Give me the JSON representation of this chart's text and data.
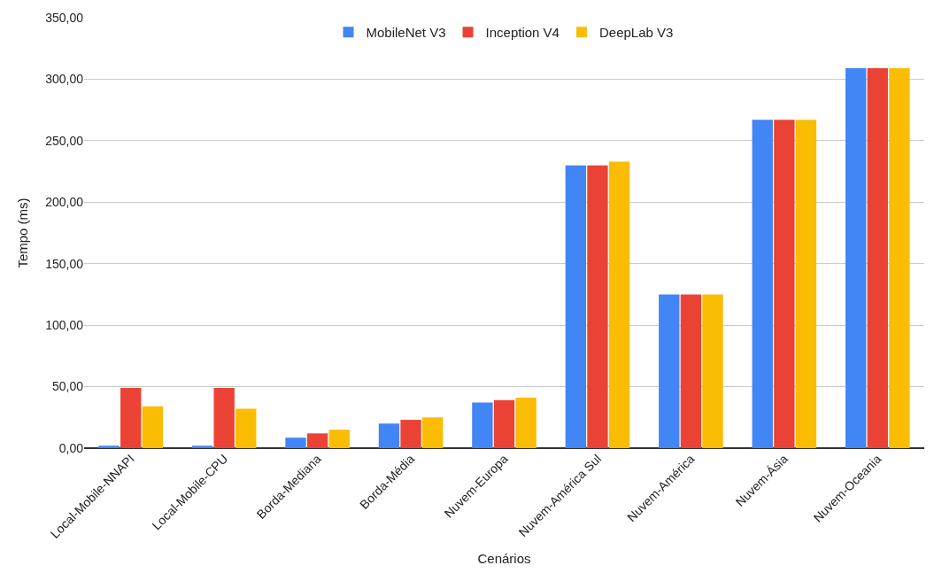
{
  "chart_data": {
    "type": "bar",
    "xlabel": "Cenários",
    "ylabel": "Tempo (ms)",
    "categories": [
      "Local-Mobile-NNAPI",
      "Local-Mobile-CPU",
      "Borda-Mediana",
      "Borda-Média",
      "Nuvem-Europa",
      "Nuvem-América Sul",
      "Nuvem-América",
      "Nuvem-Ásia",
      "Nuvem-Oceania"
    ],
    "series": [
      {
        "name": "MobileNet V3",
        "color": "#4285f4",
        "values": [
          2,
          2,
          8.5,
          20,
          37,
          230,
          125,
          267,
          309
        ]
      },
      {
        "name": "Inception V4",
        "color": "#ea4335",
        "values": [
          49,
          49,
          12,
          23,
          39,
          230,
          125,
          267,
          309
        ]
      },
      {
        "name": "DeepLab V3",
        "color": "#fbbc04",
        "values": [
          34,
          32,
          15,
          25,
          41,
          233,
          125,
          267,
          309
        ]
      }
    ],
    "ylim": [
      0,
      350
    ],
    "yticks": [
      {
        "value": 0,
        "label": "0,00"
      },
      {
        "value": 50,
        "label": "50,00"
      },
      {
        "value": 100,
        "label": "100,00"
      },
      {
        "value": 150,
        "label": "150,00"
      },
      {
        "value": 200,
        "label": "200,00"
      },
      {
        "value": 250,
        "label": "250,00"
      },
      {
        "value": 300,
        "label": "300,00"
      },
      {
        "value": 350,
        "label": "350,00"
      }
    ],
    "grid": "y",
    "legend": "top"
  }
}
